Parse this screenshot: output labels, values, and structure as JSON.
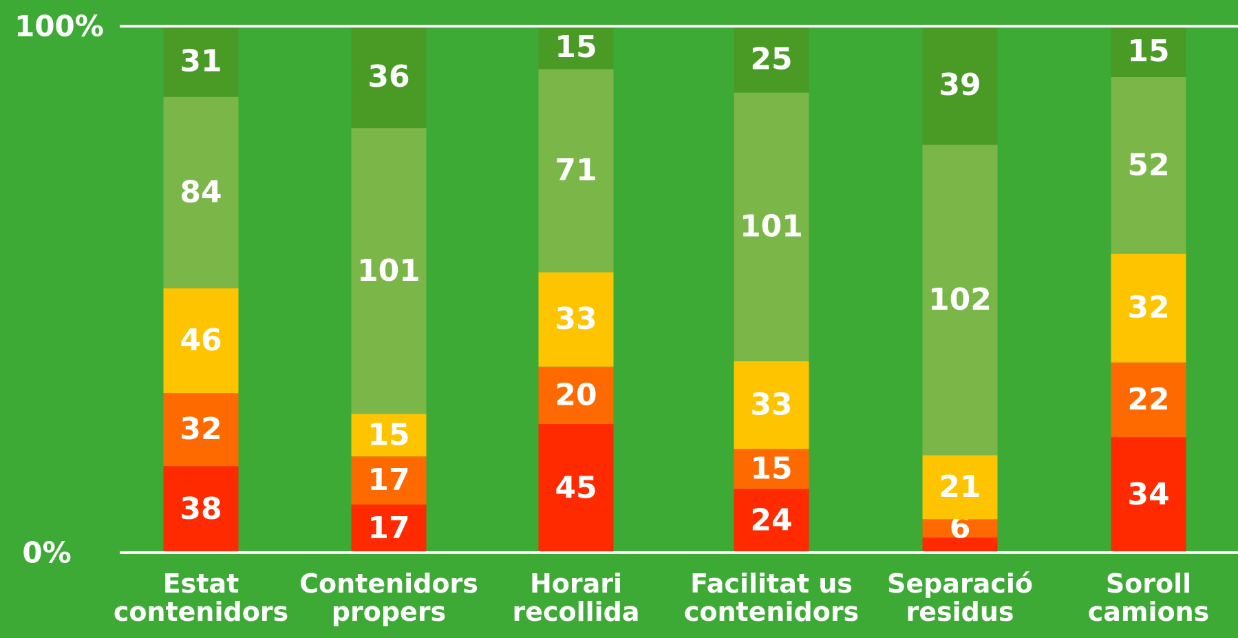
{
  "chart_data": {
    "type": "stacked_bar",
    "stacking": "percent",
    "categories": [
      "Estat contenidors",
      "Contenidors propers",
      "Horari recollida",
      "Facilitat us contenidors",
      "Separació residus",
      "Soroll camions"
    ],
    "series": [
      {
        "color": "#ff2a00",
        "values": [
          38,
          17,
          45,
          24,
          5,
          34
        ]
      },
      {
        "color": "#ff6a00",
        "values": [
          32,
          17,
          20,
          15,
          6,
          22
        ]
      },
      {
        "color": "#ffc400",
        "values": [
          46,
          15,
          33,
          33,
          21,
          32
        ]
      },
      {
        "color": "#7ab648",
        "values": [
          84,
          101,
          71,
          101,
          102,
          52
        ]
      },
      {
        "color": "#4a9a26",
        "values": [
          31,
          36,
          15,
          25,
          39,
          15
        ]
      }
    ],
    "ylim": [
      0,
      100
    ],
    "yticks": [
      {
        "value": 0,
        "label": "0%"
      },
      {
        "value": 100,
        "label": "100%"
      }
    ],
    "grid": true
  }
}
